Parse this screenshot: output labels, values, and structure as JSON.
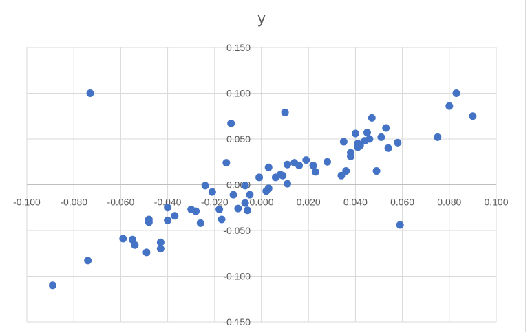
{
  "chart_data": {
    "type": "scatter",
    "title": "y",
    "xlabel": "",
    "ylabel": "",
    "xlim": [
      -0.1,
      0.1
    ],
    "ylim": [
      -0.15,
      0.15
    ],
    "x_ticks": [
      -0.1,
      -0.08,
      -0.06,
      -0.04,
      -0.02,
      0.0,
      0.02,
      0.04,
      0.06,
      0.08,
      0.1
    ],
    "y_ticks": [
      -0.15,
      -0.1,
      -0.05,
      0.0,
      0.05,
      0.1,
      0.15
    ],
    "x_tick_labels": [
      "-0.100",
      "-0.080",
      "-0.060",
      "-0.040",
      "-0.020",
      "0.000",
      "0.020",
      "0.040",
      "0.060",
      "0.080",
      "0.100"
    ],
    "y_tick_labels": [
      "-0.150",
      "-0.100",
      "-0.050",
      "0.000",
      "0.050",
      "0.100",
      "0.150"
    ],
    "grid": true,
    "legend": "none",
    "marker_color": "#4472c4",
    "points": [
      {
        "x": -0.073,
        "y": 0.1
      },
      {
        "x": -0.089,
        "y": -0.11
      },
      {
        "x": -0.074,
        "y": -0.083
      },
      {
        "x": -0.059,
        "y": -0.059
      },
      {
        "x": -0.055,
        "y": -0.06
      },
      {
        "x": -0.054,
        "y": -0.066
      },
      {
        "x": -0.049,
        "y": -0.074
      },
      {
        "x": -0.048,
        "y": -0.038
      },
      {
        "x": -0.048,
        "y": -0.041
      },
      {
        "x": -0.043,
        "y": -0.063
      },
      {
        "x": -0.043,
        "y": -0.07
      },
      {
        "x": -0.04,
        "y": -0.025
      },
      {
        "x": -0.04,
        "y": -0.039
      },
      {
        "x": -0.037,
        "y": -0.034
      },
      {
        "x": -0.03,
        "y": -0.027
      },
      {
        "x": -0.028,
        "y": -0.029
      },
      {
        "x": -0.026,
        "y": -0.042
      },
      {
        "x": -0.024,
        "y": -0.001
      },
      {
        "x": -0.021,
        "y": -0.008
      },
      {
        "x": -0.018,
        "y": -0.027
      },
      {
        "x": -0.017,
        "y": -0.038
      },
      {
        "x": -0.015,
        "y": 0.024
      },
      {
        "x": -0.013,
        "y": 0.067
      },
      {
        "x": -0.012,
        "y": -0.011
      },
      {
        "x": -0.01,
        "y": -0.026
      },
      {
        "x": -0.007,
        "y": -0.001
      },
      {
        "x": -0.007,
        "y": -0.02
      },
      {
        "x": -0.006,
        "y": -0.028
      },
      {
        "x": -0.005,
        "y": -0.011
      },
      {
        "x": -0.001,
        "y": 0.008
      },
      {
        "x": 0.002,
        "y": -0.007
      },
      {
        "x": 0.003,
        "y": -0.004
      },
      {
        "x": 0.003,
        "y": 0.019
      },
      {
        "x": 0.006,
        "y": 0.008
      },
      {
        "x": 0.008,
        "y": 0.011
      },
      {
        "x": 0.009,
        "y": 0.01
      },
      {
        "x": 0.01,
        "y": 0.079
      },
      {
        "x": 0.011,
        "y": 0.022
      },
      {
        "x": 0.011,
        "y": 0.001
      },
      {
        "x": 0.014,
        "y": 0.024
      },
      {
        "x": 0.016,
        "y": 0.021
      },
      {
        "x": 0.019,
        "y": 0.027
      },
      {
        "x": 0.022,
        "y": 0.021
      },
      {
        "x": 0.023,
        "y": 0.014
      },
      {
        "x": 0.028,
        "y": 0.025
      },
      {
        "x": 0.034,
        "y": 0.01
      },
      {
        "x": 0.035,
        "y": 0.047
      },
      {
        "x": 0.036,
        "y": 0.015
      },
      {
        "x": 0.038,
        "y": 0.031
      },
      {
        "x": 0.038,
        "y": 0.035
      },
      {
        "x": 0.04,
        "y": 0.056
      },
      {
        "x": 0.041,
        "y": 0.041
      },
      {
        "x": 0.041,
        "y": 0.045
      },
      {
        "x": 0.042,
        "y": 0.043
      },
      {
        "x": 0.044,
        "y": 0.048
      },
      {
        "x": 0.045,
        "y": 0.057
      },
      {
        "x": 0.046,
        "y": 0.05
      },
      {
        "x": 0.047,
        "y": 0.073
      },
      {
        "x": 0.049,
        "y": 0.015
      },
      {
        "x": 0.051,
        "y": 0.052
      },
      {
        "x": 0.053,
        "y": 0.062
      },
      {
        "x": 0.054,
        "y": 0.04
      },
      {
        "x": 0.058,
        "y": 0.046
      },
      {
        "x": 0.059,
        "y": -0.044
      },
      {
        "x": 0.075,
        "y": 0.052
      },
      {
        "x": 0.08,
        "y": 0.086
      },
      {
        "x": 0.083,
        "y": 0.1
      },
      {
        "x": 0.09,
        "y": 0.075
      }
    ]
  }
}
